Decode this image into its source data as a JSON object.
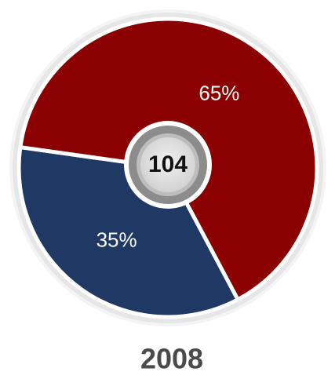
{
  "chart_data": {
    "type": "pie",
    "variant": "donut",
    "slices": [
      {
        "label": "35%",
        "value": 35,
        "color": "#1f3864"
      },
      {
        "label": "65%",
        "value": 65,
        "color": "#8b0000"
      }
    ],
    "center_value": "104",
    "category": "2008",
    "legend": "none"
  }
}
